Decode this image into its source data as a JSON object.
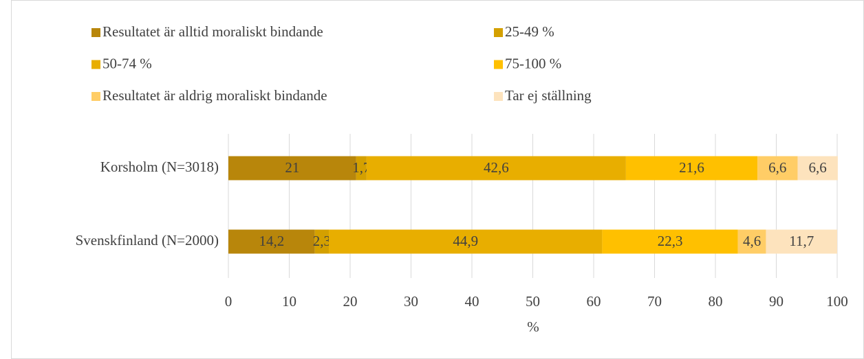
{
  "chart_data": {
    "type": "stacked_bar_horizontal",
    "categories": [
      "Korsholm (N=3018)",
      "Svenskfinland (N=2000)"
    ],
    "series": [
      {
        "name": "Resultatet är alltid moraliskt bindande",
        "color": "#b8860b",
        "values": [
          21,
          14.2
        ],
        "value_labels": [
          "21",
          "14,2"
        ]
      },
      {
        "name": "25-49 %",
        "color": "#d4a000",
        "values": [
          1.7,
          2.3
        ],
        "value_labels": [
          "1,7",
          "2,3"
        ]
      },
      {
        "name": "50-74 %",
        "color": "#e8ae00",
        "values": [
          42.6,
          44.9
        ],
        "value_labels": [
          "42,6",
          "44,9"
        ]
      },
      {
        "name": "75-100 %",
        "color": "#ffc000",
        "values": [
          21.6,
          22.3
        ],
        "value_labels": [
          "21,6",
          "22,3"
        ]
      },
      {
        "name": "Resultatet är aldrig moraliskt bindande",
        "color": "#ffcd66",
        "values": [
          6.6,
          4.6
        ],
        "value_labels": [
          "6,6",
          "4,6"
        ]
      },
      {
        "name": "Tar ej ställning",
        "color": "#fde3bd",
        "values": [
          6.6,
          11.7
        ],
        "value_labels": [
          "6,6",
          "11,7"
        ]
      }
    ],
    "xlabel": "%",
    "xlim": [
      0,
      100
    ],
    "xticks": [
      0,
      10,
      20,
      30,
      40,
      50,
      60,
      70,
      80,
      90,
      100
    ],
    "grid": true
  }
}
